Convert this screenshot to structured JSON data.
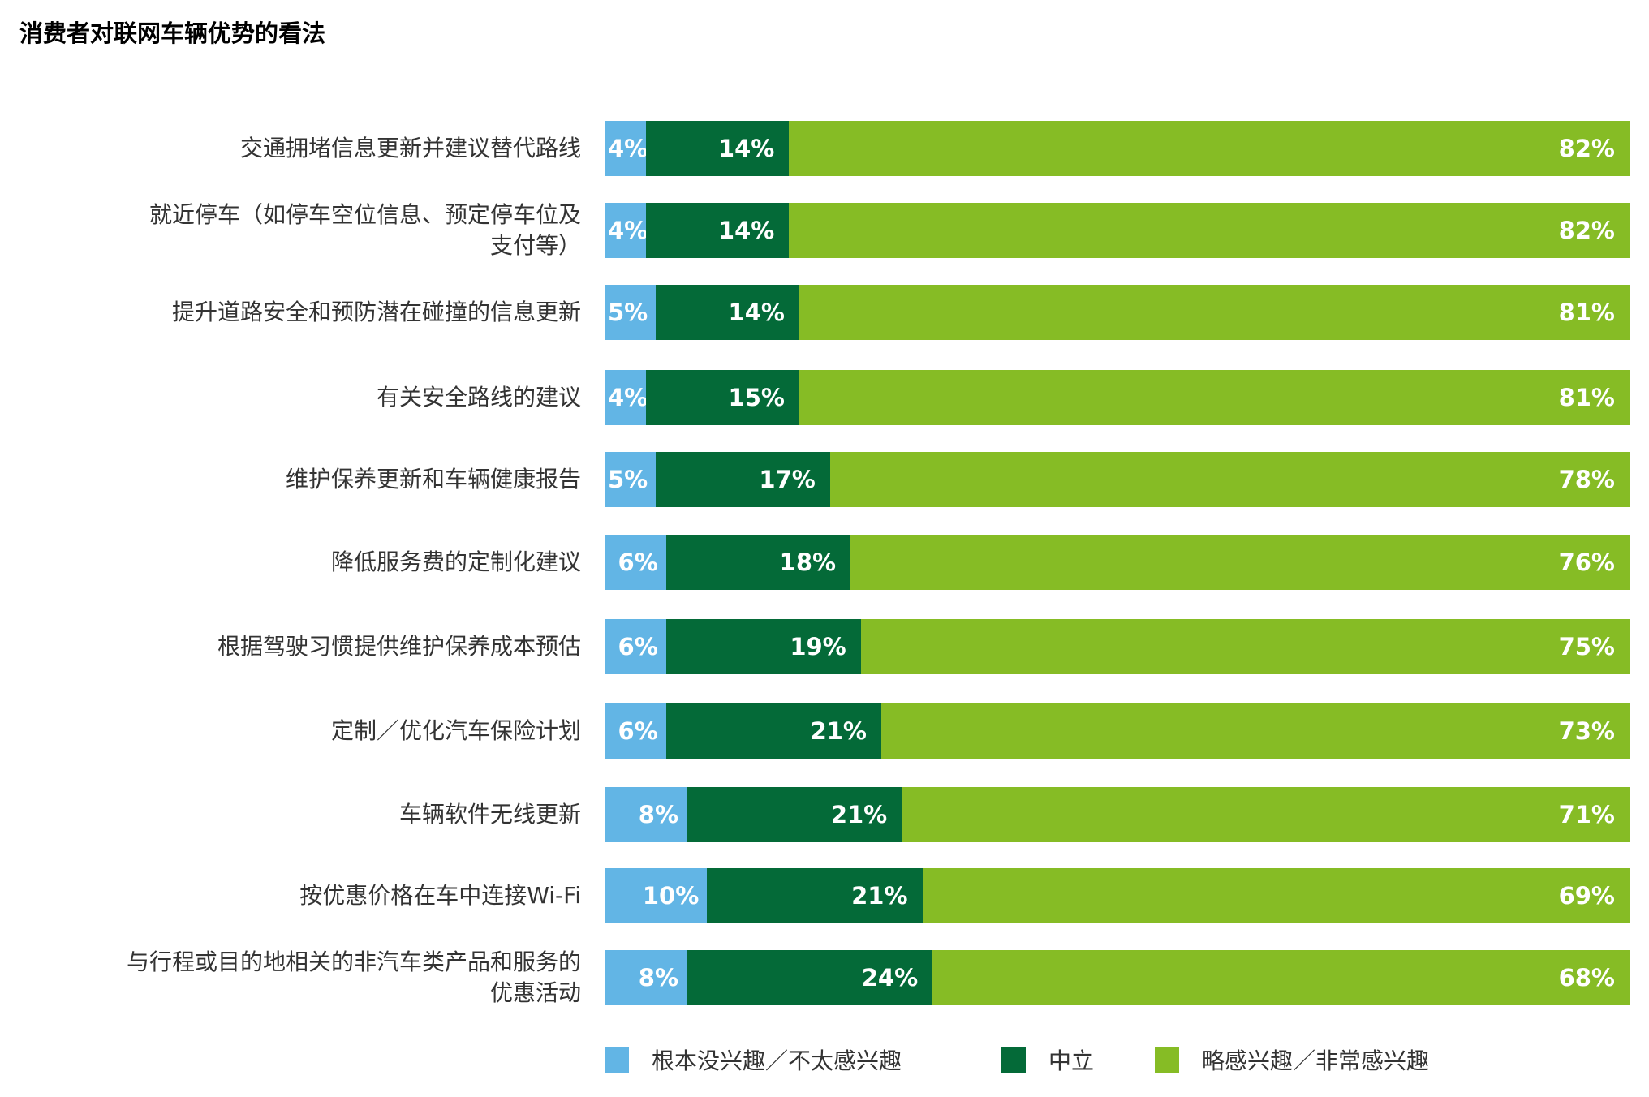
{
  "chart_data": {
    "type": "bar",
    "orientation": "horizontal",
    "stacked": true,
    "title": "消费者对联网车辆优势的看法",
    "categories": [
      "交通拥堵信息更新并建议替代路线",
      "就近停车（如停车空位信息、预定停车位及支付等）",
      "提升道路安全和预防潜在碰撞的信息更新",
      "有关安全路线的建议",
      "维护保养更新和车辆健康报告",
      "降低服务费的定制化建议",
      "根据驾驶习惯提供维护保养成本预估",
      "定制／优化汽车保险计划",
      "车辆软件无线更新",
      "按优惠价格在车中连接Wi-Fi",
      "与行程或目的地相关的非汽车类产品和服务的优惠活动"
    ],
    "series": [
      {
        "name": "根本没兴趣／不太感兴趣",
        "color": "#62b5e5",
        "values": [
          4,
          4,
          5,
          4,
          5,
          6,
          6,
          6,
          8,
          10,
          8
        ]
      },
      {
        "name": "中立",
        "color": "#046a38",
        "values": [
          14,
          14,
          14,
          15,
          17,
          18,
          19,
          21,
          21,
          21,
          24
        ]
      },
      {
        "name": "略感兴趣／非常感兴趣",
        "color": "#86bc25",
        "values": [
          82,
          82,
          81,
          81,
          78,
          76,
          75,
          73,
          71,
          69,
          68
        ]
      }
    ],
    "value_suffix": "%",
    "legend_position": "bottom",
    "grid": false,
    "xlim": [
      0,
      100
    ]
  }
}
